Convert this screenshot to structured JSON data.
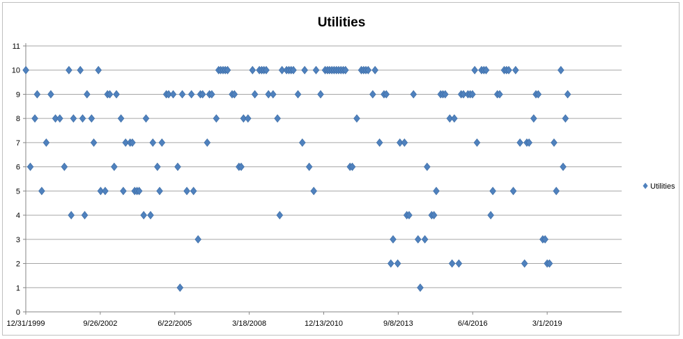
{
  "chart_data": {
    "type": "scatter",
    "title": "Utilities",
    "xlabel": "",
    "ylabel": "",
    "ylim": [
      0,
      11
    ],
    "yticks": [
      "0",
      "1",
      "2",
      "3",
      "4",
      "5",
      "6",
      "7",
      "8",
      "9",
      "10",
      "11"
    ],
    "xticks": [
      "12/31/1999",
      "9/26/2002",
      "6/22/2005",
      "3/18/2008",
      "12/13/2010",
      "9/8/2013",
      "6/4/2016",
      "3/1/2019"
    ],
    "xlim": [
      "12/31/1999",
      "11/25/2021"
    ],
    "grid": "horizontal",
    "legend_position": "right",
    "marker": "diamond",
    "color": "#4f81bd",
    "series": [
      {
        "name": "Utilities",
        "points": [
          [
            "2000-01-01",
            10
          ],
          [
            "2000-03-01",
            6
          ],
          [
            "2000-05-01",
            8
          ],
          [
            "2000-06-01",
            9
          ],
          [
            "2000-08-01",
            5
          ],
          [
            "2000-10-01",
            7
          ],
          [
            "2000-12-01",
            9
          ],
          [
            "2001-02-01",
            8
          ],
          [
            "2001-04-01",
            8
          ],
          [
            "2001-06-01",
            6
          ],
          [
            "2001-08-01",
            10
          ],
          [
            "2001-09-01",
            4
          ],
          [
            "2001-10-01",
            8
          ],
          [
            "2002-01-01",
            10
          ],
          [
            "2002-02-01",
            8
          ],
          [
            "2002-03-01",
            4
          ],
          [
            "2002-04-01",
            9
          ],
          [
            "2002-06-01",
            8
          ],
          [
            "2002-07-01",
            7
          ],
          [
            "2002-09-01",
            10
          ],
          [
            "2002-10-01",
            5
          ],
          [
            "2002-12-01",
            5
          ],
          [
            "2003-01-01",
            9
          ],
          [
            "2003-02-01",
            9
          ],
          [
            "2003-04-01",
            6
          ],
          [
            "2003-05-01",
            9
          ],
          [
            "2003-07-01",
            8
          ],
          [
            "2003-08-01",
            5
          ],
          [
            "2003-09-01",
            7
          ],
          [
            "2003-11-01",
            7
          ],
          [
            "2003-12-01",
            7
          ],
          [
            "2004-01-01",
            5
          ],
          [
            "2004-02-01",
            5
          ],
          [
            "2004-03-01",
            5
          ],
          [
            "2004-05-01",
            4
          ],
          [
            "2004-06-01",
            8
          ],
          [
            "2004-08-01",
            4
          ],
          [
            "2004-09-01",
            7
          ],
          [
            "2004-11-01",
            6
          ],
          [
            "2004-12-01",
            5
          ],
          [
            "2005-01-01",
            7
          ],
          [
            "2005-03-01",
            9
          ],
          [
            "2005-04-01",
            9
          ],
          [
            "2005-06-01",
            9
          ],
          [
            "2005-08-01",
            6
          ],
          [
            "2005-09-01",
            1
          ],
          [
            "2005-10-01",
            9
          ],
          [
            "2005-12-01",
            5
          ],
          [
            "2006-02-01",
            9
          ],
          [
            "2006-03-01",
            5
          ],
          [
            "2006-05-01",
            3
          ],
          [
            "2006-06-01",
            9
          ],
          [
            "2006-07-01",
            9
          ],
          [
            "2006-09-01",
            7
          ],
          [
            "2006-10-01",
            9
          ],
          [
            "2006-11-01",
            9
          ],
          [
            "2007-01-01",
            8
          ],
          [
            "2007-02-01",
            10
          ],
          [
            "2007-03-01",
            10
          ],
          [
            "2007-04-01",
            10
          ],
          [
            "2007-05-01",
            10
          ],
          [
            "2007-06-01",
            10
          ],
          [
            "2007-08-01",
            9
          ],
          [
            "2007-09-01",
            9
          ],
          [
            "2007-11-01",
            6
          ],
          [
            "2007-12-01",
            6
          ],
          [
            "2008-01-01",
            8
          ],
          [
            "2008-03-01",
            8
          ],
          [
            "2008-05-01",
            10
          ],
          [
            "2008-06-01",
            9
          ],
          [
            "2008-08-01",
            10
          ],
          [
            "2008-09-01",
            10
          ],
          [
            "2008-10-01",
            10
          ],
          [
            "2008-11-01",
            10
          ],
          [
            "2008-12-01",
            9
          ],
          [
            "2009-02-01",
            9
          ],
          [
            "2009-04-01",
            8
          ],
          [
            "2009-05-01",
            4
          ],
          [
            "2009-06-01",
            10
          ],
          [
            "2009-08-01",
            10
          ],
          [
            "2009-09-01",
            10
          ],
          [
            "2009-10-01",
            10
          ],
          [
            "2009-11-01",
            10
          ],
          [
            "2010-01-01",
            9
          ],
          [
            "2010-03-01",
            7
          ],
          [
            "2010-04-01",
            10
          ],
          [
            "2010-06-01",
            6
          ],
          [
            "2010-08-01",
            5
          ],
          [
            "2010-09-01",
            10
          ],
          [
            "2010-11-01",
            9
          ],
          [
            "2011-01-01",
            10
          ],
          [
            "2011-02-01",
            10
          ],
          [
            "2011-03-01",
            10
          ],
          [
            "2011-04-01",
            10
          ],
          [
            "2011-05-01",
            10
          ],
          [
            "2011-06-01",
            10
          ],
          [
            "2011-07-01",
            10
          ],
          [
            "2011-08-01",
            10
          ],
          [
            "2011-09-01",
            10
          ],
          [
            "2011-10-01",
            10
          ],
          [
            "2011-12-01",
            6
          ],
          [
            "2012-01-01",
            6
          ],
          [
            "2012-03-01",
            8
          ],
          [
            "2012-05-01",
            10
          ],
          [
            "2012-06-01",
            10
          ],
          [
            "2012-07-01",
            10
          ],
          [
            "2012-08-01",
            10
          ],
          [
            "2012-10-01",
            9
          ],
          [
            "2012-11-01",
            10
          ],
          [
            "2013-01-01",
            7
          ],
          [
            "2013-03-01",
            9
          ],
          [
            "2013-04-01",
            9
          ],
          [
            "2013-06-01",
            2
          ],
          [
            "2013-07-01",
            3
          ],
          [
            "2013-09-01",
            2
          ],
          [
            "2013-10-01",
            7
          ],
          [
            "2013-12-01",
            7
          ],
          [
            "2014-01-01",
            4
          ],
          [
            "2014-02-01",
            4
          ],
          [
            "2014-04-01",
            9
          ],
          [
            "2014-06-01",
            3
          ],
          [
            "2014-07-01",
            1
          ],
          [
            "2014-09-01",
            3
          ],
          [
            "2014-10-01",
            6
          ],
          [
            "2014-12-01",
            4
          ],
          [
            "2015-01-01",
            4
          ],
          [
            "2015-02-01",
            5
          ],
          [
            "2015-04-01",
            9
          ],
          [
            "2015-05-01",
            9
          ],
          [
            "2015-06-01",
            9
          ],
          [
            "2015-08-01",
            8
          ],
          [
            "2015-09-01",
            2
          ],
          [
            "2015-10-01",
            8
          ],
          [
            "2015-12-01",
            2
          ],
          [
            "2016-01-01",
            9
          ],
          [
            "2016-02-01",
            9
          ],
          [
            "2016-04-01",
            9
          ],
          [
            "2016-05-01",
            9
          ],
          [
            "2016-06-01",
            9
          ],
          [
            "2016-07-01",
            10
          ],
          [
            "2016-08-01",
            7
          ],
          [
            "2016-10-01",
            10
          ],
          [
            "2016-11-01",
            10
          ],
          [
            "2016-12-01",
            10
          ],
          [
            "2017-02-01",
            4
          ],
          [
            "2017-03-01",
            5
          ],
          [
            "2017-05-01",
            9
          ],
          [
            "2017-06-01",
            9
          ],
          [
            "2017-08-01",
            10
          ],
          [
            "2017-09-01",
            10
          ],
          [
            "2017-10-01",
            10
          ],
          [
            "2017-12-01",
            5
          ],
          [
            "2018-01-01",
            10
          ],
          [
            "2018-03-01",
            7
          ],
          [
            "2018-05-01",
            2
          ],
          [
            "2018-06-01",
            7
          ],
          [
            "2018-07-01",
            7
          ],
          [
            "2018-09-01",
            8
          ],
          [
            "2018-10-01",
            9
          ],
          [
            "2018-11-01",
            9
          ],
          [
            "2019-01-01",
            3
          ],
          [
            "2019-02-01",
            3
          ],
          [
            "2019-03-01",
            2
          ],
          [
            "2019-04-01",
            2
          ],
          [
            "2019-06-01",
            7
          ],
          [
            "2019-07-01",
            5
          ],
          [
            "2019-09-01",
            10
          ],
          [
            "2019-10-01",
            6
          ],
          [
            "2019-11-01",
            8
          ],
          [
            "2019-12-01",
            9
          ]
        ]
      }
    ]
  }
}
